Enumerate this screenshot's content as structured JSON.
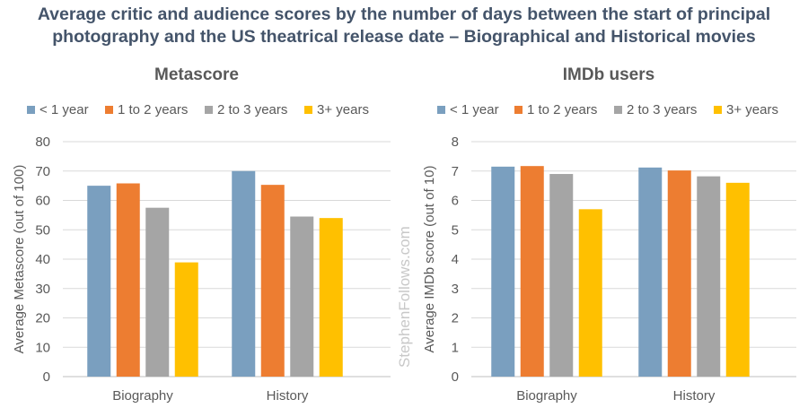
{
  "title_line1": "Average critic and audience scores by the number of days between the start of principal",
  "title_line2": "photography and the US theatrical release date – Biographical and Historical movies",
  "watermark": "StephenFollows.com",
  "colors": {
    "title": "#44546a",
    "text": "#595959",
    "grid": "#d9d9d9",
    "series": [
      "#7a9fbf",
      "#ed7d31",
      "#a5a5a5",
      "#ffc000"
    ]
  },
  "chart_data": [
    {
      "type": "bar",
      "title": "Metascore",
      "ylabel": "Average Metascore (out of 100)",
      "xlabel": "",
      "categories": [
        "Biography",
        "History"
      ],
      "ylim": [
        0,
        80
      ],
      "yticks": [
        0,
        10,
        20,
        30,
        40,
        50,
        60,
        70,
        80
      ],
      "grid": true,
      "legend": "top",
      "series": [
        {
          "name": "< 1 year",
          "values": [
            65,
            70
          ]
        },
        {
          "name": "1 to 2 years",
          "values": [
            65.8,
            65.3
          ]
        },
        {
          "name": "2 to 3 years",
          "values": [
            57.5,
            54.5
          ]
        },
        {
          "name": "3+ years",
          "values": [
            38.9,
            54
          ]
        }
      ]
    },
    {
      "type": "bar",
      "title": "IMDb users",
      "ylabel": "Average IMDb score (out of 10)",
      "xlabel": "",
      "categories": [
        "Biography",
        "History"
      ],
      "ylim": [
        0,
        8
      ],
      "yticks": [
        0,
        1,
        2,
        3,
        4,
        5,
        6,
        7,
        8
      ],
      "grid": true,
      "legend": "top",
      "series": [
        {
          "name": "< 1 year",
          "values": [
            7.15,
            7.12
          ]
        },
        {
          "name": "1 to 2 years",
          "values": [
            7.17,
            7.02
          ]
        },
        {
          "name": "2 to 3 years",
          "values": [
            6.9,
            6.82
          ]
        },
        {
          "name": "3+ years",
          "values": [
            5.7,
            6.6
          ]
        }
      ]
    }
  ]
}
